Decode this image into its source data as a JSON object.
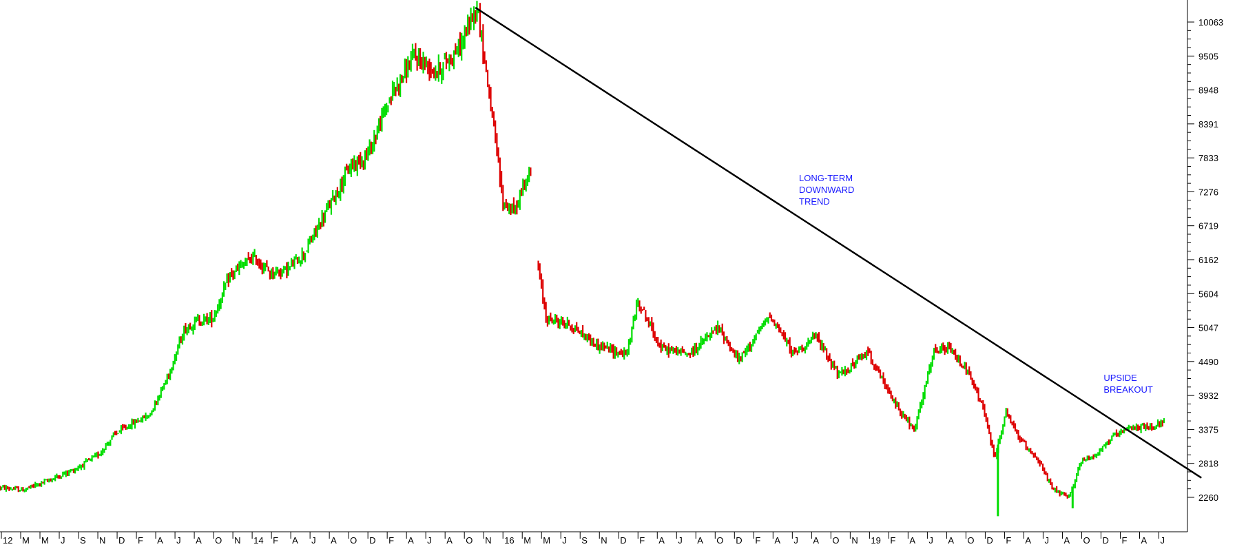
{
  "chart_data": {
    "type": "candlestick",
    "title": "",
    "xlabel": "",
    "ylabel": "",
    "ylim": [
      1800,
      10500
    ],
    "y_ticks": [
      2260,
      2818,
      3375,
      3932,
      4490,
      5047,
      5604,
      6162,
      6719,
      7276,
      7833,
      8391,
      8948,
      9505,
      10063
    ],
    "x_tick_labels": [
      "12",
      "M",
      "M",
      "J",
      "S",
      "N",
      "D",
      "F",
      "A",
      "J",
      "A",
      "O",
      "N",
      "14",
      "F",
      "A",
      "J",
      "A",
      "O",
      "D",
      "F",
      "A",
      "J",
      "A",
      "O",
      "N",
      "16",
      "M",
      "M",
      "J",
      "S",
      "N",
      "D",
      "F",
      "A",
      "J",
      "A",
      "O",
      "D",
      "F",
      "A",
      "J",
      "A",
      "O",
      "N",
      "19",
      "F",
      "A",
      "J",
      "A",
      "O",
      "D",
      "F",
      "A",
      "J",
      "A",
      "O",
      "D",
      "F",
      "A",
      "J"
    ],
    "colors": {
      "up": "#00dd00",
      "down": "#dd0000",
      "trendline": "#000000",
      "annotation": "#1a1aff"
    },
    "price_path": [
      [
        0,
        2420
      ],
      [
        40,
        2380
      ],
      [
        90,
        2560
      ],
      [
        130,
        2720
      ],
      [
        170,
        2950
      ],
      [
        200,
        3300
      ],
      [
        230,
        3470
      ],
      [
        260,
        3620
      ],
      [
        290,
        4200
      ],
      [
        320,
        5000
      ],
      [
        340,
        5150
      ],
      [
        370,
        5200
      ],
      [
        400,
        5900
      ],
      [
        440,
        6200
      ],
      [
        470,
        5950
      ],
      [
        500,
        6000
      ],
      [
        530,
        6280
      ],
      [
        570,
        7000
      ],
      [
        610,
        7700
      ],
      [
        640,
        7900
      ],
      [
        680,
        8850
      ],
      [
        720,
        9500
      ],
      [
        760,
        9250
      ],
      [
        800,
        9650
      ],
      [
        830,
        10350
      ],
      [
        855,
        8600
      ],
      [
        875,
        7100
      ],
      [
        895,
        6950
      ],
      [
        915,
        7500
      ],
      [
        925,
        7550
      ],
      [
        935,
        6100
      ],
      [
        950,
        5200
      ],
      [
        990,
        5100
      ],
      [
        1040,
        4750
      ],
      [
        1090,
        4600
      ],
      [
        1110,
        5500
      ],
      [
        1150,
        4700
      ],
      [
        1200,
        4620
      ],
      [
        1250,
        5050
      ],
      [
        1285,
        4500
      ],
      [
        1340,
        5250
      ],
      [
        1380,
        4620
      ],
      [
        1420,
        4900
      ],
      [
        1460,
        4250
      ],
      [
        1510,
        4650
      ],
      [
        1550,
        3900
      ],
      [
        1590,
        3350
      ],
      [
        1625,
        4650
      ],
      [
        1650,
        4700
      ],
      [
        1680,
        4380
      ],
      [
        1710,
        3750
      ],
      [
        1730,
        2900
      ],
      [
        1750,
        3650
      ],
      [
        1775,
        3200
      ],
      [
        1805,
        2900
      ],
      [
        1830,
        2400
      ],
      [
        1860,
        2250
      ],
      [
        1880,
        2850
      ],
      [
        1905,
        2950
      ],
      [
        1935,
        3250
      ],
      [
        1975,
        3420
      ],
      [
        2000,
        3400
      ],
      [
        2025,
        3520
      ]
    ],
    "range": [
      0,
      2025
    ],
    "spikes": [
      {
        "x": 1736,
        "low": 1950
      },
      {
        "x": 1866,
        "low": 2080
      }
    ],
    "trendline": {
      "from": [
        827,
        10300
      ],
      "to": [
        2090,
        2580
      ]
    },
    "annotations": [
      {
        "lines": [
          "LONG-TERM",
          "DOWNWARD",
          "TREND"
        ],
        "x": 1390,
        "y": 7450
      },
      {
        "lines": [
          "UPSIDE",
          "BREAKOUT"
        ],
        "x": 1920,
        "y": 4170
      }
    ]
  }
}
